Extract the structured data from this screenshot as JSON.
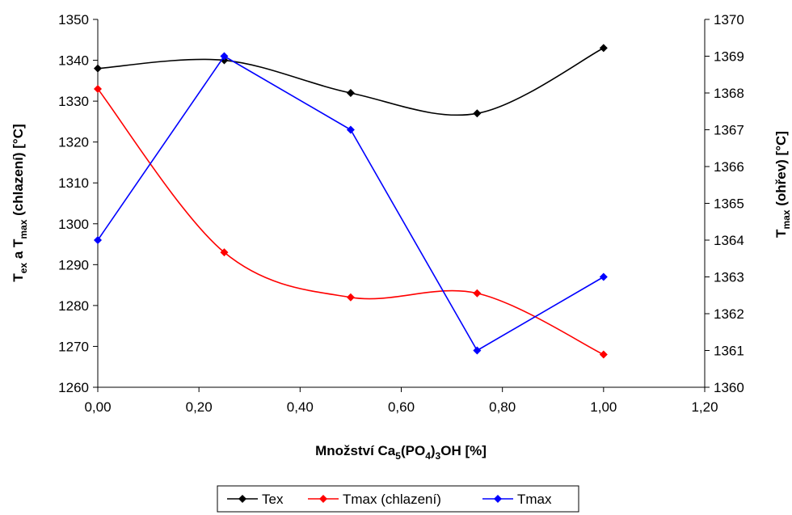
{
  "chart_data": {
    "type": "line",
    "xlabel": {
      "pre": "Množství Ca",
      "sub1": "5",
      "mid1": "(PO",
      "sub2": "4",
      "mid2": ")",
      "sub3": "3",
      "post": "OH [%]"
    },
    "ylabel_left": {
      "pre": "T",
      "sub1": "ex",
      "mid": " a T",
      "sub2": "max",
      "post": " (chlazení) [°C]"
    },
    "ylabel_right": {
      "pre": "T",
      "sub": "max",
      "post": " (ohřev) [°C]"
    },
    "x_ticks": [
      "0,00",
      "0,20",
      "0,40",
      "0,60",
      "0,80",
      "1,00",
      "1,20"
    ],
    "y_left_ticks": [
      "1260",
      "1270",
      "1280",
      "1290",
      "1300",
      "1310",
      "1320",
      "1330",
      "1340",
      "1350"
    ],
    "y_right_ticks": [
      "1360",
      "1361",
      "1362",
      "1363",
      "1364",
      "1365",
      "1366",
      "1367",
      "1368",
      "1369",
      "1370"
    ],
    "xlim": [
      0,
      1.2
    ],
    "ylim_left": [
      1260,
      1350
    ],
    "ylim_right": [
      1360,
      1370
    ],
    "legend_position": "bottom",
    "series": [
      {
        "name": "Tex",
        "axis": "left",
        "smooth": true,
        "color": "#000000",
        "x": [
          0,
          0.25,
          0.5,
          0.75,
          1.0
        ],
        "y": [
          1338,
          1340,
          1332,
          1327,
          1343
        ]
      },
      {
        "name": "Tmax (chlazení)",
        "axis": "left",
        "smooth": true,
        "color": "#ff0000",
        "x": [
          0,
          0.25,
          0.5,
          0.75,
          1.0
        ],
        "y": [
          1333,
          1293,
          1282,
          1283,
          1268
        ]
      },
      {
        "name": "Tmax",
        "axis": "right",
        "smooth": false,
        "color": "#0000ff",
        "x": [
          0,
          0.25,
          0.5,
          0.75,
          1.0
        ],
        "y": [
          1364,
          1369,
          1367,
          1361,
          1363
        ]
      }
    ]
  }
}
